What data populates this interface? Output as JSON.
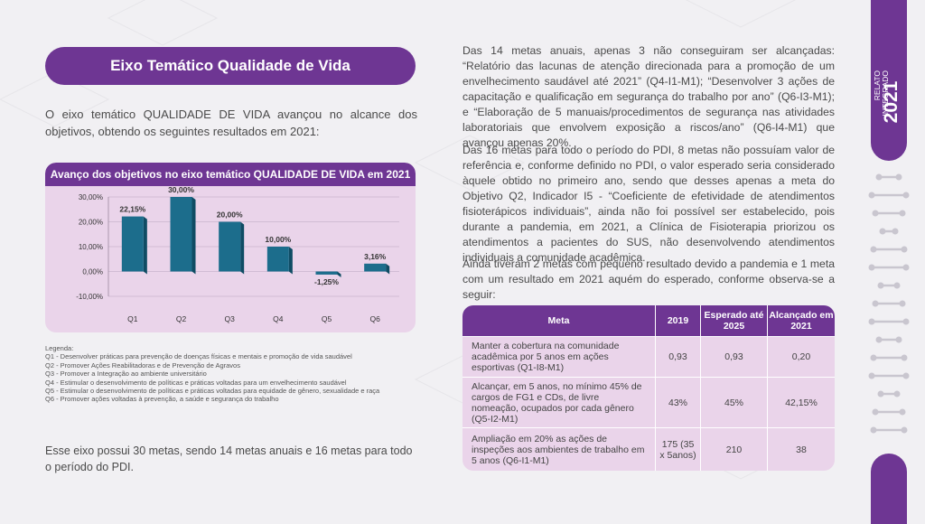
{
  "section_title": "Eixo Temático Qualidade de Vida",
  "intro": "O eixo temático QUALIDADE DE VIDA avançou no alcance dos objetivos, obtendo os seguintes resultados em 2021:",
  "chart_title": "Avanço dos objetivos no eixo temático QUALIDADE DE VIDA em 2021",
  "chart_data": {
    "type": "bar",
    "title": "Avanço dos objetivos no eixo temático QUALIDADE DE VIDA em 2021",
    "categories": [
      "Q1",
      "Q2",
      "Q3",
      "Q4",
      "Q5",
      "Q6"
    ],
    "values": [
      22.15,
      30.0,
      20.0,
      10.0,
      -1.25,
      3.16
    ],
    "value_labels": [
      "22,15%",
      "30,00%",
      "20,00%",
      "10,00%",
      "-1,25%",
      "3,16%"
    ],
    "y_ticks": [
      "30,00%",
      "20,00%",
      "10,00%",
      "0,00%",
      "-10,00%"
    ],
    "ylim": [
      -10,
      30
    ],
    "bar_color": "#1c6d8c",
    "grid": true
  },
  "legend": {
    "title": "Legenda:",
    "items": [
      "Q1 - Desenvolver práticas para prevenção de doenças físicas e mentais e promoção de vida saudável",
      "Q2 - Promover Ações Reabilitadoras e de Prevenção de Agravos",
      "Q3 - Promover a Integração ao ambiente universitário",
      "Q4 - Estimular o desenvolvimento de políticas e práticas voltadas para um envelhecimento saudável",
      "Q5 - Estimular o desenvolvimento de políticas e práticas voltadas para equidade de gênero, sexualidade e raça",
      "Q6 - Promover ações voltadas à prevenção, a saúde e segurança do trabalho"
    ]
  },
  "closing": "Esse eixo possui 30 metas, sendo 14 metas anuais e 16 metas para todo o período do PDI.",
  "paragraphs": [
    "Das 14 metas anuais, apenas 3 não conseguiram ser alcançadas: “Relatório das lacunas de atenção direcionada para a promoção de um envelhecimento saudável até 2021” (Q4-I1-M1); “Desenvolver 3 ações de capacitação e qualificação em segurança do trabalho por ano” (Q6-I3-M1); e “Elaboração de 5 manuais/procedimentos de segurança nas atividades laboratoriais que envolvem exposição a riscos/ano” (Q6-I4-M1) que avançou apenas 20%.",
    "Das 16 metas para todo o período do PDI, 8 metas não possuíam valor de referência e, conforme definido no PDI, o valor esperado seria considerado àquele obtido no primeiro ano, sendo que desses apenas a meta do Objetivo Q2, Indicador I5 - “Coeficiente de efetividade de atendimentos fisioterápicos individuais”, ainda não foi possível ser estabelecido, pois durante a pandemia, em 2021, a Clínica de Fisioterapia priorizou os atendimentos a pacientes do SUS, não desenvolvendo atendimentos individuais a comunidade acadêmica.",
    "Ainda tiveram 2 metas com pequeno resultado devido a pandemia e 1 meta com um resultado em 2021 aquém do esperado, conforme observa-se a seguir:"
  ],
  "table": {
    "headers": [
      "Meta",
      "2019",
      "Esperado até 2025",
      "Alcançado em 2021"
    ],
    "rows": [
      [
        "Manter a cobertura na comunidade acadêmica por 5 anos em ações esportivas (Q1-I8-M1)",
        "0,93",
        "0,93",
        "0,20"
      ],
      [
        "Alcançar, em 5 anos, no mínimo 45% de cargos de FG1 e CDs, de livre nomeação, ocupados por cada gênero (Q5-I2-M1)",
        "43%",
        "45%",
        "42,15%"
      ],
      [
        "Ampliação em 20% as ações de inspeções aos ambientes de trabalho em 5 anos (Q6-I1-M1)",
        "175 (35 x 5anos)",
        "210",
        "38"
      ]
    ]
  },
  "sidebar": {
    "relato": "RELATO",
    "integrado": "INTEGRADO",
    "year": "2021"
  },
  "colors": {
    "purple": "#6e3693",
    "lilac": "#ead4ea",
    "bar": "#1c6d8c"
  }
}
